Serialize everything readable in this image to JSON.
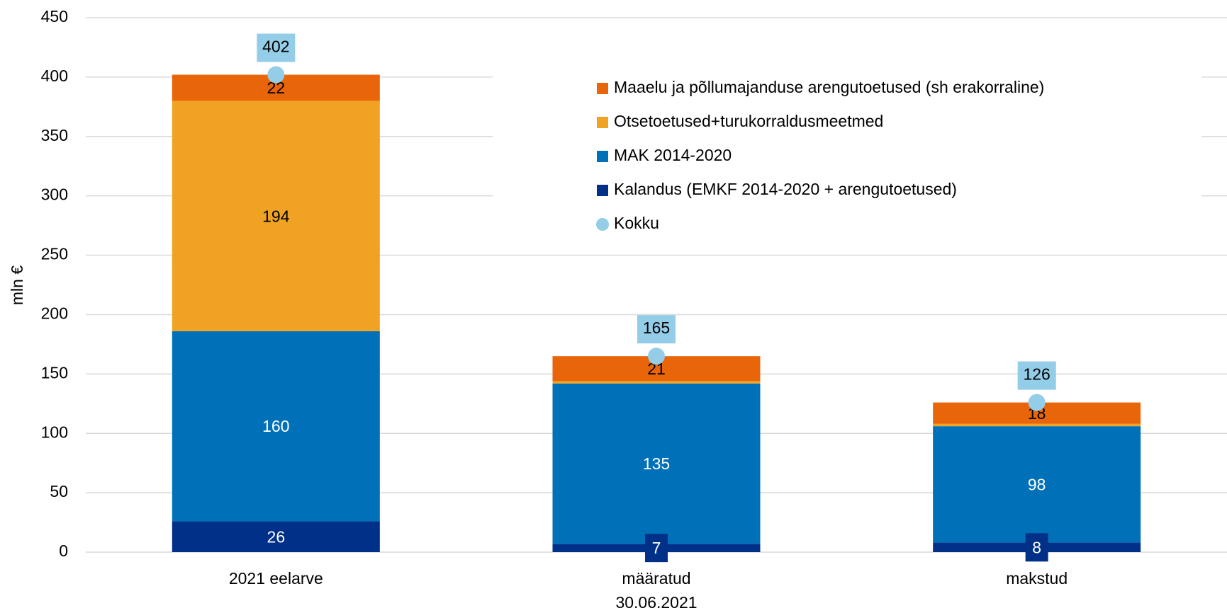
{
  "chart_data": {
    "type": "stacked_bar",
    "y_label": "mln €",
    "categories": [
      "2021 eelarve",
      [
        "määratud",
        "30.06.2021"
      ],
      "makstud"
    ],
    "ylim": [
      0,
      450
    ],
    "yticks": [
      0,
      50,
      100,
      150,
      200,
      250,
      300,
      350,
      400,
      450
    ],
    "grid": true,
    "legend": "top-right",
    "series": [
      {
        "name": "Maaelu ja põllumajanduse arengutoetused (sh erakorraline)",
        "color": "#e8650a",
        "label_color": "#000000",
        "values": [
          22,
          21,
          18
        ]
      },
      {
        "name": "Otsetoetused+turukorraldusmeetmed",
        "color": "#f0a322",
        "label_color": "#000000",
        "values": [
          194,
          2,
          2
        ]
      },
      {
        "name": "MAK 2014-2020",
        "color": "#0070b8",
        "label_color": "#ffffff",
        "values": [
          160,
          135,
          98
        ]
      },
      {
        "name": "Kalandus (EMKF 2014-2020 + arengutoetused)",
        "color": "#003087",
        "label_color": "#ffffff",
        "values": [
          26,
          7,
          8
        ]
      },
      {
        "name": "Kokku",
        "type": "scatter",
        "color": "#93cde8",
        "label_color": "#000000",
        "values": [
          402,
          165,
          126
        ]
      }
    ]
  }
}
